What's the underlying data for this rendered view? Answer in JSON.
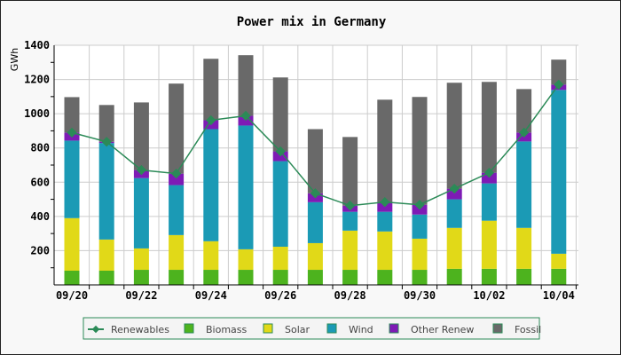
{
  "chart_data": {
    "type": "bar",
    "stacked": true,
    "title": "Power mix in Germany",
    "xlabel": "",
    "ylabel": "GWh",
    "ylim": [
      0,
      1400
    ],
    "yticks": [
      200,
      400,
      600,
      800,
      1000,
      1200,
      1400
    ],
    "grid": true,
    "legend_placement": "bottom",
    "categories": [
      "09/20",
      "09/21",
      "09/22",
      "09/23",
      "09/24",
      "09/25",
      "09/26",
      "09/27",
      "09/28",
      "09/29",
      "09/30",
      "10/01",
      "10/02",
      "10/03",
      "10/04"
    ],
    "xtick_labels": [
      "09/20",
      "09/22",
      "09/24",
      "09/26",
      "09/28",
      "09/30",
      "10/02",
      "10/04"
    ],
    "series": [
      {
        "name": "Biomass",
        "color": "#4db31e",
        "values": [
          83,
          83,
          88,
          88,
          88,
          88,
          88,
          88,
          88,
          88,
          88,
          94,
          94,
          94,
          94
        ]
      },
      {
        "name": "Solar",
        "color": "#e1d918",
        "values": [
          307,
          182,
          125,
          203,
          167,
          120,
          135,
          156,
          229,
          224,
          182,
          239,
          281,
          239,
          88
        ]
      },
      {
        "name": "Wind",
        "color": "#1b9ab5",
        "values": [
          453,
          564,
          411,
          292,
          655,
          723,
          500,
          239,
          110,
          115,
          141,
          167,
          218,
          505,
          957
        ]
      },
      {
        "name": "Other Renew",
        "color": "#7e1bb5",
        "values": [
          47,
          7,
          47,
          67,
          52,
          57,
          57,
          52,
          36,
          57,
          57,
          62,
          62,
          52,
          31
        ]
      },
      {
        "name": "Fossil",
        "color": "#696969",
        "values": [
          207,
          215,
          395,
          526,
          359,
          354,
          432,
          375,
          401,
          598,
          630,
          619,
          531,
          254,
          146
        ]
      }
    ],
    "line": {
      "name": "Renewables",
      "color": "#2b8a57",
      "values": [
        890,
        836,
        671,
        650,
        962,
        988,
        780,
        535,
        463,
        484,
        468,
        562,
        655,
        890,
        1170
      ]
    }
  }
}
